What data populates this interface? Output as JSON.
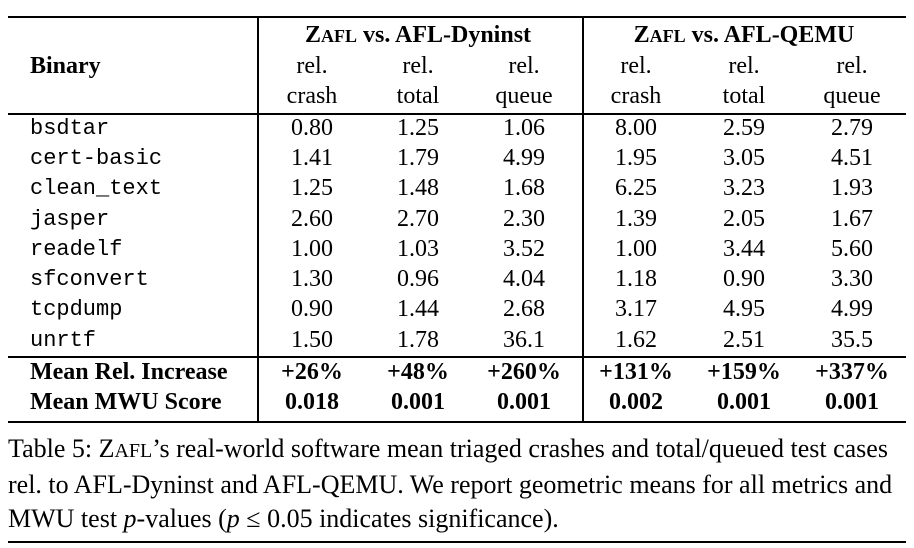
{
  "table": {
    "header": {
      "row_label": "Binary",
      "groups": [
        {
          "prefix_big": "Z",
          "prefix_small": "AFL",
          "rest": " vs. AFL-Dyninst"
        },
        {
          "prefix_big": "Z",
          "prefix_small": "AFL",
          "rest": " vs. AFL-QEMU"
        }
      ],
      "metric_top": [
        "rel.",
        "rel.",
        "rel.",
        "rel.",
        "rel.",
        "rel."
      ],
      "metric_bottom": [
        "crash",
        "total",
        "queue",
        "crash",
        "total",
        "queue"
      ]
    },
    "rows": [
      {
        "binary": "bsdtar",
        "values": [
          "0.80",
          "1.25",
          "1.06",
          "8.00",
          "2.59",
          "2.79"
        ]
      },
      {
        "binary": "cert-basic",
        "values": [
          "1.41",
          "1.79",
          "4.99",
          "1.95",
          "3.05",
          "4.51"
        ]
      },
      {
        "binary": "clean_text",
        "values": [
          "1.25",
          "1.48",
          "1.68",
          "6.25",
          "3.23",
          "1.93"
        ]
      },
      {
        "binary": "jasper",
        "values": [
          "2.60",
          "2.70",
          "2.30",
          "1.39",
          "2.05",
          "1.67"
        ]
      },
      {
        "binary": "readelf",
        "values": [
          "1.00",
          "1.03",
          "3.52",
          "1.00",
          "3.44",
          "5.60"
        ]
      },
      {
        "binary": "sfconvert",
        "values": [
          "1.30",
          "0.96",
          "4.04",
          "1.18",
          "0.90",
          "3.30"
        ]
      },
      {
        "binary": "tcpdump",
        "values": [
          "0.90",
          "1.44",
          "2.68",
          "3.17",
          "4.95",
          "4.99"
        ]
      },
      {
        "binary": "unrtf",
        "values": [
          "1.50",
          "1.78",
          "36.1",
          "1.62",
          "2.51",
          "35.5"
        ]
      }
    ],
    "summary": [
      {
        "label": "Mean Rel. Increase",
        "values": [
          "+26%",
          "+48%",
          "+260%",
          "+131%",
          "+159%",
          "+337%"
        ]
      },
      {
        "label": "Mean MWU Score",
        "values": [
          "0.018",
          "0.001",
          "0.001",
          "0.002",
          "0.001",
          "0.001"
        ]
      }
    ]
  },
  "caption": {
    "label": "Table 5: ",
    "name_big": "Z",
    "name_small": "AFL",
    "part1": "’s real-world software mean triaged crashes and total/queued test cases rel. to AFL-Dyninst and AFL-QEMU. We report geometric means for all metrics and MWU test ",
    "p_var": "p",
    "part2": "-values (",
    "p_var2": "p",
    "part3": " ≤ 0.05 indicates significance)."
  }
}
